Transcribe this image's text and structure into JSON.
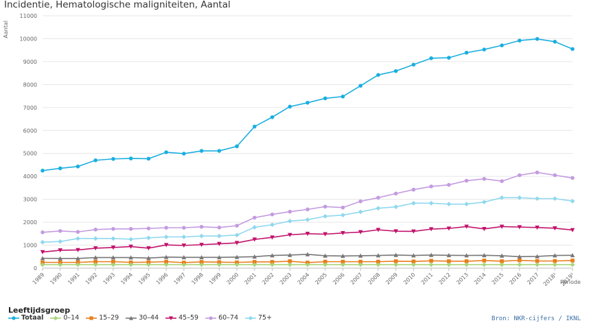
{
  "chart_data": {
    "type": "line",
    "title": "Incidentie, Hematologische maligniteiten, Aantal",
    "ylabel": "Aantal",
    "xlabel": "Periode",
    "ylim": [
      0,
      11000
    ],
    "yticks": [
      0,
      1000,
      2000,
      3000,
      4000,
      5000,
      6000,
      7000,
      8000,
      9000,
      10000,
      11000
    ],
    "categories": [
      "1989",
      "1990",
      "1991",
      "1992",
      "1993",
      "1994",
      "1995",
      "1996",
      "1997",
      "1998",
      "1999",
      "2000",
      "2001",
      "2002",
      "2003",
      "2004",
      "2005",
      "2006",
      "2007",
      "2008",
      "2009",
      "2010",
      "2011",
      "2012",
      "2013",
      "2014",
      "2015",
      "2016",
      "2017",
      "2018¹",
      "2019¹"
    ],
    "grid": "horizontal",
    "legend_title": "Leeftijdsgroep",
    "legend_position": "bottom-left",
    "series": [
      {
        "name": "Totaal",
        "color": "#1aaee0",
        "marker": "circle",
        "values": [
          4250,
          4350,
          4430,
          4700,
          4760,
          4780,
          4770,
          5050,
          4990,
          5110,
          5110,
          5310,
          6170,
          6580,
          7040,
          7210,
          7400,
          7480,
          7950,
          8420,
          8590,
          8870,
          9150,
          9170,
          9390,
          9530,
          9710,
          9920,
          9990,
          9870,
          9550
        ]
      },
      {
        "name": "0–14",
        "color": "#a8d57a",
        "marker": "diamond",
        "values": [
          150,
          150,
          150,
          150,
          150,
          150,
          150,
          150,
          150,
          150,
          150,
          150,
          150,
          150,
          150,
          150,
          150,
          150,
          150,
          150,
          150,
          150,
          150,
          150,
          150,
          150,
          150,
          150,
          150,
          150,
          150
        ]
      },
      {
        "name": "15–29",
        "color": "#e87e1c",
        "marker": "square",
        "values": [
          250,
          250,
          250,
          280,
          280,
          250,
          260,
          280,
          240,
          270,
          260,
          250,
          270,
          270,
          300,
          240,
          280,
          280,
          280,
          280,
          300,
          290,
          320,
          300,
          300,
          330,
          300,
          340,
          310,
          310,
          330
        ]
      },
      {
        "name": "30–44",
        "color": "#777777",
        "marker": "triangle",
        "values": [
          430,
          420,
          420,
          460,
          460,
          460,
          440,
          480,
          470,
          470,
          470,
          480,
          500,
          550,
          570,
          600,
          540,
          530,
          540,
          550,
          570,
          550,
          570,
          560,
          550,
          560,
          540,
          500,
          510,
          550,
          560
        ]
      },
      {
        "name": "45–59",
        "color": "#c0126b",
        "marker": "triangle-down",
        "values": [
          700,
          780,
          790,
          870,
          900,
          940,
          870,
          1010,
          990,
          1020,
          1060,
          1100,
          1250,
          1340,
          1450,
          1500,
          1480,
          1530,
          1570,
          1670,
          1610,
          1600,
          1700,
          1730,
          1810,
          1710,
          1810,
          1790,
          1770,
          1740,
          1660
        ]
      },
      {
        "name": "60–74",
        "color": "#c39be0",
        "marker": "circle",
        "values": [
          1560,
          1620,
          1580,
          1680,
          1710,
          1710,
          1730,
          1760,
          1760,
          1800,
          1770,
          1850,
          2200,
          2340,
          2460,
          2560,
          2680,
          2640,
          2910,
          3070,
          3250,
          3420,
          3560,
          3630,
          3810,
          3890,
          3790,
          4050,
          4170,
          4050,
          3930
        ]
      },
      {
        "name": "75+",
        "color": "#8fd8ee",
        "marker": "diamond",
        "values": [
          1130,
          1160,
          1290,
          1290,
          1290,
          1260,
          1320,
          1360,
          1360,
          1400,
          1400,
          1440,
          1780,
          1890,
          2050,
          2110,
          2260,
          2310,
          2450,
          2610,
          2670,
          2830,
          2830,
          2790,
          2790,
          2880,
          3070,
          3070,
          3030,
          3030,
          2920
        ]
      }
    ]
  },
  "legend": {
    "title": "Leeftijdsgroep",
    "items": [
      {
        "label": "Totaal",
        "color": "#1aaee0",
        "marker": "circle"
      },
      {
        "label": "0–14",
        "color": "#a8d57a",
        "marker": "diamond"
      },
      {
        "label": "15–29",
        "color": "#e87e1c",
        "marker": "square"
      },
      {
        "label": "30–44",
        "color": "#777777",
        "marker": "triangle"
      },
      {
        "label": "45–59",
        "color": "#c0126b",
        "marker": "triangle-down"
      },
      {
        "label": "60–74",
        "color": "#c39be0",
        "marker": "circle"
      },
      {
        "label": "75+",
        "color": "#8fd8ee",
        "marker": "diamond"
      }
    ]
  },
  "source": "Bron: NKR-cijfers / IKNL"
}
